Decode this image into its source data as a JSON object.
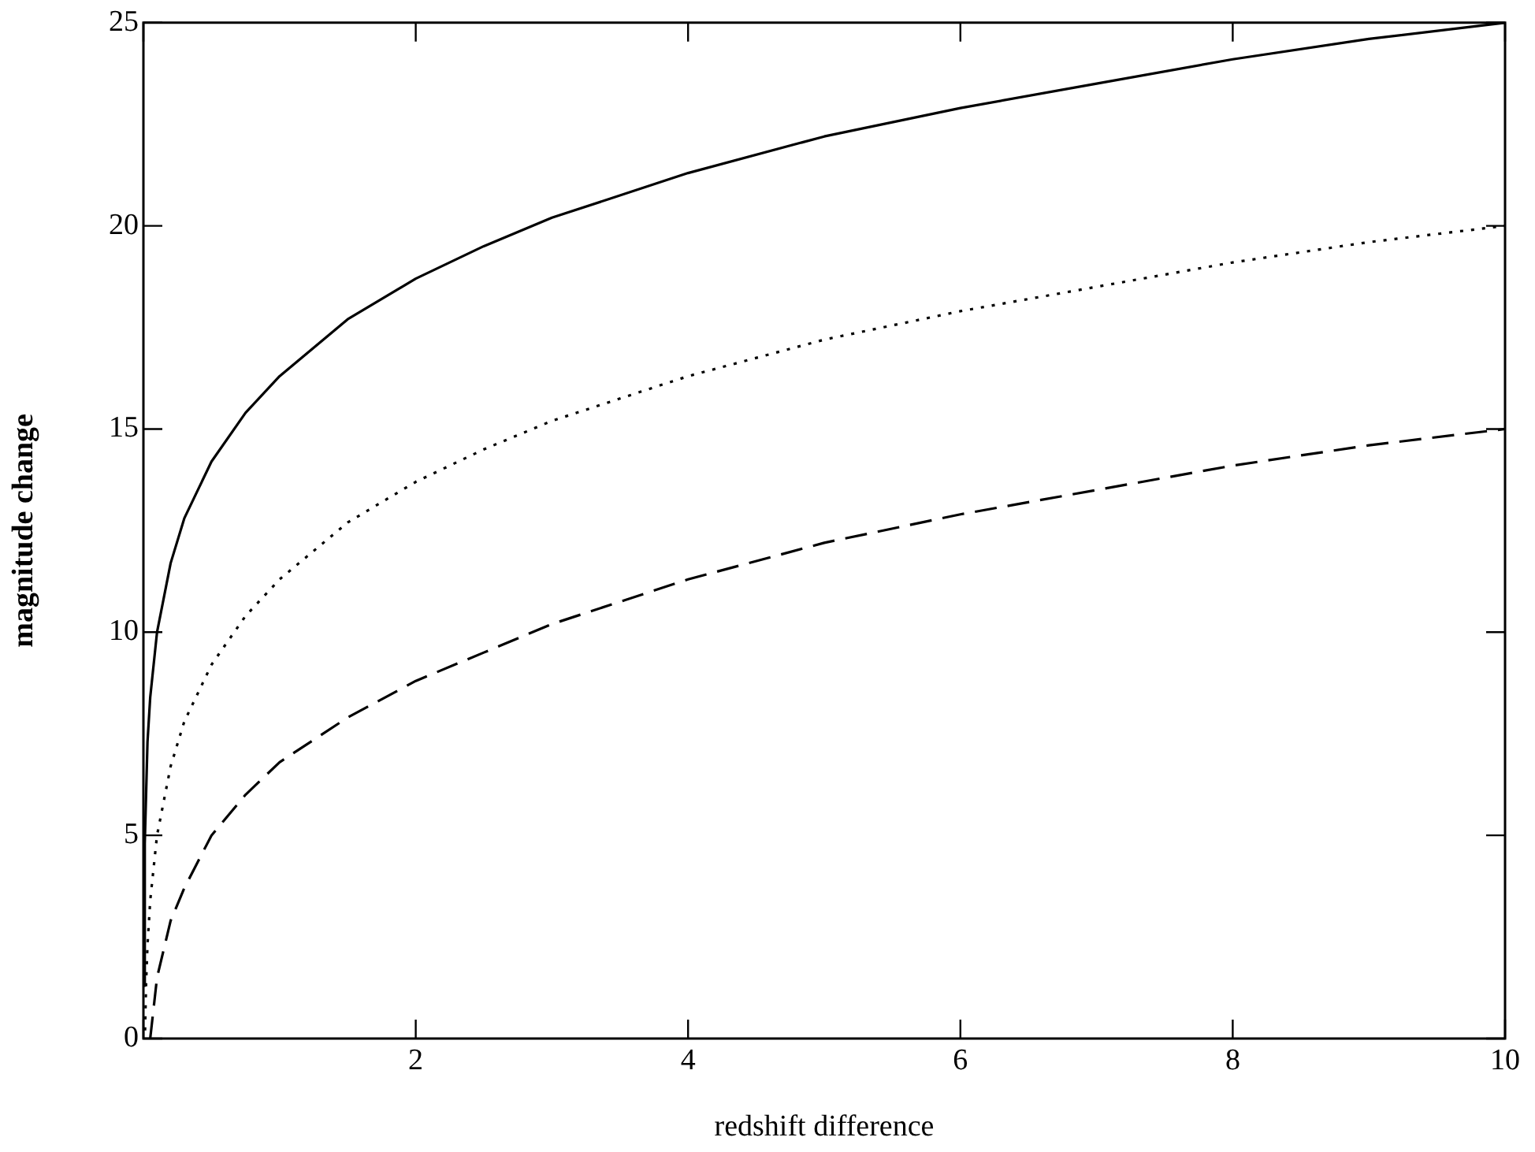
{
  "chart_data": {
    "type": "line",
    "xlabel": "redshift difference",
    "ylabel": "magnitude change",
    "xlim": [
      0,
      10
    ],
    "ylim": [
      0,
      25
    ],
    "xticks": [
      {
        "value": 0,
        "label": null
      },
      2,
      4,
      6,
      8,
      10
    ],
    "yticks": [
      0,
      5,
      10,
      15,
      20,
      25
    ],
    "grid": false,
    "legend": false,
    "marker": "none",
    "series": [
      {
        "color": "#000000",
        "line_style": "solid",
        "x": [
          0.002,
          0.01,
          0.03,
          0.05,
          0.1,
          0.2,
          0.3,
          0.5,
          0.75,
          1,
          1.5,
          2,
          2.5,
          3,
          4,
          5,
          6,
          7,
          8,
          9,
          10
        ],
        "values": [
          1.3,
          4.8,
          7.3,
          8.4,
          10.0,
          11.7,
          12.8,
          14.2,
          15.4,
          16.3,
          17.7,
          18.7,
          19.5,
          20.2,
          21.3,
          22.2,
          22.9,
          23.5,
          24.1,
          24.6,
          25.0
        ]
      },
      {
        "color": "#000000",
        "line_style": "dotted",
        "x": [
          0.012,
          0.02,
          0.03,
          0.05,
          0.1,
          0.2,
          0.3,
          0.5,
          0.75,
          1,
          1.5,
          2,
          2.5,
          3,
          4,
          5,
          6,
          7,
          8,
          9,
          10
        ],
        "values": [
          0.2,
          1.4,
          2.3,
          3.4,
          5.0,
          6.7,
          7.8,
          9.2,
          10.4,
          11.3,
          12.7,
          13.7,
          14.5,
          15.2,
          16.3,
          17.2,
          17.9,
          18.5,
          19.1,
          19.6,
          20.0
        ]
      },
      {
        "color": "#000000",
        "line_style": "dashed",
        "x": [
          0.05,
          0.1,
          0.2,
          0.3,
          0.5,
          0.75,
          1,
          1.5,
          2,
          2.5,
          3,
          4,
          5,
          6,
          7,
          8,
          9,
          10
        ],
        "values": [
          0.0,
          1.5,
          2.9,
          3.7,
          5.0,
          6.0,
          6.8,
          7.9,
          8.8,
          9.5,
          10.2,
          11.3,
          12.2,
          12.9,
          13.5,
          14.1,
          14.6,
          15.0
        ]
      }
    ]
  }
}
